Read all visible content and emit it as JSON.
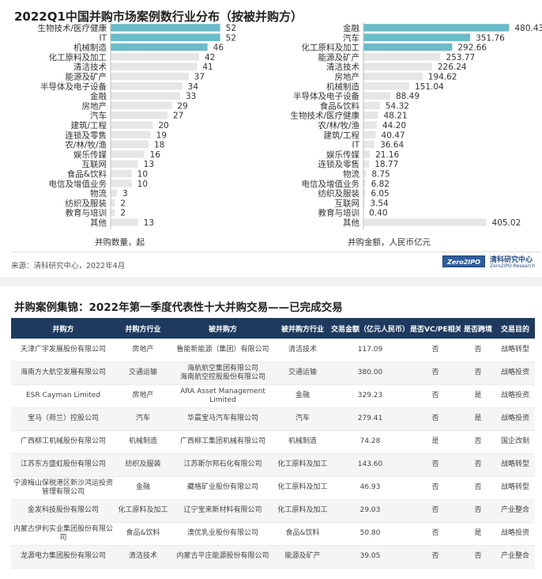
{
  "title": "2022Q1中国并购市场案例数行业分布（按被并购方）",
  "chart_data": [
    {
      "type": "bar",
      "orientation": "horizontal",
      "xlabel": "并购数量，起",
      "categories": [
        "生物技术/医疗健康",
        "IT",
        "机械制造",
        "化工原料及加工",
        "清洁技术",
        "能源及矿产",
        "半导体及电子设备",
        "金融",
        "房地产",
        "汽车",
        "建筑/工程",
        "连锁及零售",
        "农/林/牧/渔",
        "娱乐传媒",
        "互联网",
        "食品&饮料",
        "电信及增值业务",
        "物流",
        "纺织及服装",
        "教育与培训",
        "其他"
      ],
      "values": [
        52,
        52,
        46,
        42,
        41,
        37,
        34,
        33,
        29,
        27,
        20,
        19,
        18,
        16,
        13,
        10,
        10,
        3,
        2,
        2,
        13
      ],
      "value_labels": [
        "52",
        "52",
        "46",
        "42",
        "41",
        "37",
        "34",
        "33",
        "29",
        "27",
        "20",
        "19",
        "18",
        "16",
        "13",
        "10",
        "10",
        "3",
        "2",
        "2",
        "13"
      ],
      "xlim": [
        0,
        60
      ]
    },
    {
      "type": "bar",
      "orientation": "horizontal",
      "xlabel": "并购金额，人民币亿元",
      "categories": [
        "金融",
        "汽车",
        "化工原料及加工",
        "能源及矿产",
        "清洁技术",
        "房地产",
        "机械制造",
        "半导体及电子设备",
        "食品&饮料",
        "生物技术/医疗健康",
        "农/林/牧/渔",
        "建筑/工程",
        "IT",
        "娱乐传媒",
        "连锁及零售",
        "物流",
        "电信及增值业务",
        "纺织及服装",
        "互联网",
        "教育与培训",
        "其他"
      ],
      "values": [
        480.43,
        351.76,
        292.66,
        253.77,
        226.24,
        194.62,
        151.04,
        88.49,
        54.32,
        48.21,
        44.2,
        40.47,
        36.64,
        21.16,
        18.77,
        8.75,
        6.82,
        6.05,
        3.54,
        0.4,
        405.02
      ],
      "value_labels": [
        "480.43",
        "351.76",
        "292.66",
        "253.77",
        "226.24",
        "194.62",
        "151.04",
        "88.49",
        "54.32",
        "48.21",
        "44.20",
        "40.47",
        "36.64",
        "21.16",
        "18.77",
        "8.75",
        "6.82",
        "6.05",
        "3.54",
        "0.40",
        "405.02"
      ],
      "xlim": [
        0,
        500
      ]
    }
  ],
  "colors": {
    "highlight": "#69bcc9",
    "bar": "#e6e6e6",
    "header": "#1e3a5f"
  },
  "source": "来源：清科研究中心，2022年4月",
  "logo": {
    "box": "Zero2IPO",
    "name": "清科研究中心",
    "sub": "Zero2IPO Research"
  },
  "table_title": "并购案例集锦：2022年第一季度代表性十大并购交易——已完成交易",
  "table": {
    "headers": [
      "并购方",
      "并购方行业",
      "被并购方",
      "被并购方行业",
      "交易金额（亿元人民币）",
      "是否VC/PE相关",
      "是否跨境",
      "交易目的"
    ],
    "rows": [
      [
        "天津广宇发展股份有限公司",
        "房地产",
        "鲁能新能源（集团）有限公司",
        "清洁技术",
        "117.09",
        "否",
        "否",
        "战略转型"
      ],
      [
        "海南方大航空发展有限公司",
        "交通运输",
        "海航航空集团有限公司\n海南航空控股股份有限公司",
        "交通运输",
        "380.00",
        "否",
        "否",
        "战略投资"
      ],
      [
        "ESR Cayman Limited",
        "房地产",
        "ARA Asset Management Limited",
        "金融",
        "329.23",
        "否",
        "是",
        "战略投资"
      ],
      [
        "宝马（荷兰）控股公司",
        "汽车",
        "华晨宝马汽车有限公司",
        "汽车",
        "279.41",
        "否",
        "是",
        "战略投资"
      ],
      [
        "广西柳工机械股份有限公司",
        "机械制造",
        "广西柳工集团机械有限公司",
        "机械制造",
        "74.28",
        "是",
        "否",
        "国企改制"
      ],
      [
        "江苏东方盛虹股份有限公司",
        "纺织及服装",
        "江苏斯尔邦石化有限公司",
        "化工原料及加工",
        "143.60",
        "否",
        "否",
        "战略转型"
      ],
      [
        "宁波梅山保税港区新沙鸿运投资管理有限公司",
        "金融",
        "藏格矿业股份有限公司",
        "化工原料及加工",
        "46.93",
        "否",
        "否",
        "战略转型"
      ],
      [
        "金发科技股份有限公司",
        "化工原料及加工",
        "辽宁宝来新材料有限公司",
        "化工原料及加工",
        "29.03",
        "否",
        "否",
        "产业整合"
      ],
      [
        "内蒙古伊利实业集团股份有限公司",
        "食品&饮料",
        "澳优乳业股份有限公司",
        "食品&饮料",
        "50.80",
        "否",
        "是",
        "战略投资"
      ],
      [
        "龙源电力集团股份有限公司",
        "清洁技术",
        "内蒙古平庄能源股份有限公司",
        "能源及矿产",
        "39.05",
        "否",
        "否",
        "产业整合"
      ]
    ]
  }
}
